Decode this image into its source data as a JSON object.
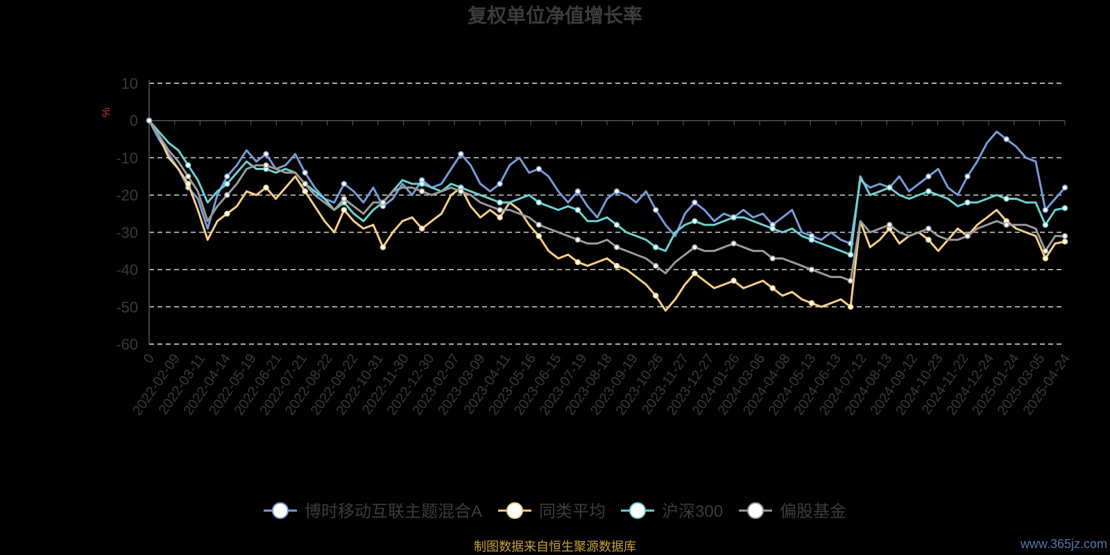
{
  "chart_data": {
    "type": "line",
    "title": "复权单位净值增长率",
    "ylabel": "%",
    "ylim": [
      -60,
      10
    ],
    "yticks": [
      10,
      0,
      -10,
      -20,
      -30,
      -40,
      -50,
      -60
    ],
    "grid": true,
    "legend_position": "bottom",
    "x_tick_labels": [
      "0",
      "2022-02-09",
      "2022-03-11",
      "2022-04-14",
      "2022-05-19",
      "2022-06-21",
      "2022-07-21",
      "2022-08-22",
      "2022-09-22",
      "2022-10-31",
      "2022-11-30",
      "2022-12-30",
      "2023-02-07",
      "2023-03-09",
      "2023-04-11",
      "2023-05-16",
      "2023-06-15",
      "2023-07-19",
      "2023-08-18",
      "2023-09-19",
      "2023-10-26",
      "2023-11-27",
      "2023-12-27",
      "2024-01-26",
      "2024-03-06",
      "2024-04-08",
      "2024-05-13",
      "2024-06-13",
      "2024-07-12",
      "2024-08-13",
      "2024-09-12",
      "2024-10-23",
      "2024-11-22",
      "2024-12-24",
      "2025-01-24",
      "2025-03-05",
      "2025-04-24"
    ],
    "series": [
      {
        "name": "博时移动互联主题混合A",
        "color": "#7b9bd6",
        "values": [
          0,
          -5,
          -9,
          -13,
          -18,
          -21,
          -29,
          -20,
          -15,
          -12,
          -8,
          -11,
          -9,
          -13,
          -12,
          -9,
          -14,
          -18,
          -21,
          -22,
          -17,
          -19,
          -22,
          -18,
          -23,
          -21,
          -17,
          -20,
          -16,
          -18,
          -17,
          -13,
          -9,
          -12,
          -17,
          -19,
          -17,
          -12,
          -10,
          -14,
          -13,
          -15,
          -19,
          -22,
          -19,
          -23,
          -26,
          -21,
          -19,
          -20,
          -22,
          -19,
          -24,
          -28,
          -31,
          -25,
          -22,
          -24,
          -27,
          -25,
          -26,
          -24,
          -26,
          -25,
          -28,
          -26,
          -24,
          -30,
          -31,
          -32,
          -30,
          -32,
          -33,
          -16,
          -18,
          -17,
          -18,
          -15,
          -19,
          -17,
          -15,
          -13,
          -18,
          -20,
          -15,
          -11,
          -6,
          -3,
          -5,
          -7,
          -10,
          -11,
          -24,
          -21,
          -18
        ]
      },
      {
        "name": "同类平均",
        "color": "#f5d08b",
        "values": [
          0,
          -4,
          -10,
          -13,
          -17,
          -24,
          -32,
          -27,
          -25,
          -23,
          -19,
          -20,
          -18,
          -21,
          -18,
          -15,
          -19,
          -23,
          -27,
          -30,
          -24,
          -27,
          -29,
          -28,
          -34,
          -30,
          -27,
          -26,
          -29,
          -27,
          -25,
          -20,
          -18,
          -23,
          -26,
          -24,
          -26,
          -22,
          -24,
          -28,
          -31,
          -35,
          -37,
          -36,
          -38,
          -39,
          -38,
          -37,
          -39,
          -40,
          -42,
          -44,
          -47,
          -51,
          -48,
          -44,
          -41,
          -43,
          -45,
          -44,
          -43,
          -45,
          -44,
          -43,
          -45,
          -47,
          -46,
          -48,
          -49,
          -50,
          -49,
          -48,
          -50,
          -27,
          -34,
          -32,
          -29,
          -33,
          -31,
          -30,
          -32,
          -35,
          -32,
          -29,
          -31,
          -28,
          -26,
          -24,
          -27,
          -29,
          -30,
          -31,
          -37,
          -33,
          -32.5
        ]
      },
      {
        "name": "沪深300",
        "color": "#6fd1d1",
        "values": [
          0,
          -3,
          -6,
          -8,
          -12,
          -16,
          -22,
          -19,
          -17,
          -14,
          -11,
          -13,
          -13,
          -14,
          -13,
          -14,
          -17,
          -19,
          -21,
          -24,
          -22,
          -25,
          -27,
          -24,
          -22,
          -19,
          -16,
          -17,
          -17,
          -18,
          -19,
          -17,
          -18,
          -19,
          -20,
          -21,
          -22,
          -22,
          -21,
          -20,
          -22,
          -23,
          -24,
          -23,
          -24,
          -27,
          -27,
          -26,
          -28,
          -30,
          -31,
          -32,
          -34,
          -35,
          -30,
          -28,
          -27,
          -28,
          -28,
          -27,
          -26,
          -26,
          -27,
          -28,
          -29,
          -30,
          -29,
          -31,
          -32,
          -33,
          -34,
          -35,
          -36,
          -15,
          -20,
          -19,
          -18,
          -20,
          -21,
          -20,
          -19,
          -20,
          -21,
          -23,
          -22,
          -22,
          -21,
          -20,
          -21,
          -21,
          -22,
          -22,
          -28,
          -24,
          -23.5
        ]
      },
      {
        "name": "偏股基金",
        "color": "#9b9b9b",
        "values": [
          0,
          -4,
          -8,
          -11,
          -15,
          -19,
          -27,
          -23,
          -20,
          -17,
          -13,
          -12,
          -12,
          -13,
          -14,
          -14,
          -17,
          -20,
          -22,
          -24,
          -21,
          -23,
          -25,
          -22,
          -22,
          -19,
          -18,
          -18,
          -19,
          -20,
          -19,
          -18,
          -19,
          -20,
          -22,
          -23,
          -24,
          -24,
          -25,
          -26,
          -28,
          -29,
          -30,
          -31,
          -32,
          -33,
          -33,
          -32,
          -34,
          -35,
          -36,
          -37,
          -39,
          -41,
          -38,
          -36,
          -34,
          -35,
          -35,
          -34,
          -33,
          -34,
          -35,
          -35,
          -37,
          -37,
          -38,
          -39,
          -40,
          -41,
          -42,
          -42,
          -43,
          -27,
          -30,
          -29,
          -28,
          -30,
          -31,
          -30,
          -29,
          -31,
          -32,
          -32,
          -31,
          -29,
          -28,
          -27,
          -28,
          -28,
          -28,
          -29,
          -35,
          -31,
          -31
        ]
      }
    ]
  },
  "footer": {
    "source": "制图数据来自恒生聚源数据库",
    "watermark": "www.365jz.com"
  }
}
